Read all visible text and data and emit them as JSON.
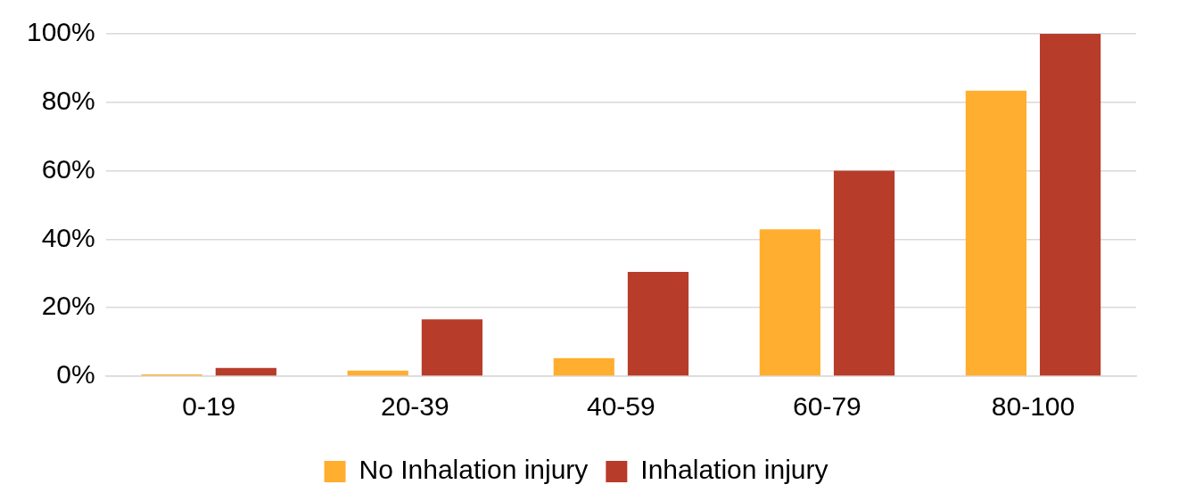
{
  "chart_data": {
    "type": "bar",
    "categories": [
      "0-19",
      "20-39",
      "40-59",
      "60-79",
      "80-100"
    ],
    "series": [
      {
        "name": "No Inhalation injury",
        "color": "#ffae2f",
        "values": [
          0.5,
          1.6,
          5.3,
          42.9,
          83.4
        ]
      },
      {
        "name": "Inhalation injury",
        "color": "#b83c2a",
        "values": [
          2.4,
          16.6,
          30.5,
          60,
          100
        ]
      }
    ],
    "ylim": [
      0,
      100
    ],
    "yticks": [
      {
        "value": 0,
        "label": "0%"
      },
      {
        "value": 20,
        "label": "20%"
      },
      {
        "value": 40,
        "label": "40%"
      },
      {
        "value": 60,
        "label": "60%"
      },
      {
        "value": 80,
        "label": "80%"
      },
      {
        "value": 100,
        "label": "100%"
      }
    ],
    "grid": "y",
    "legend": "bottom"
  }
}
